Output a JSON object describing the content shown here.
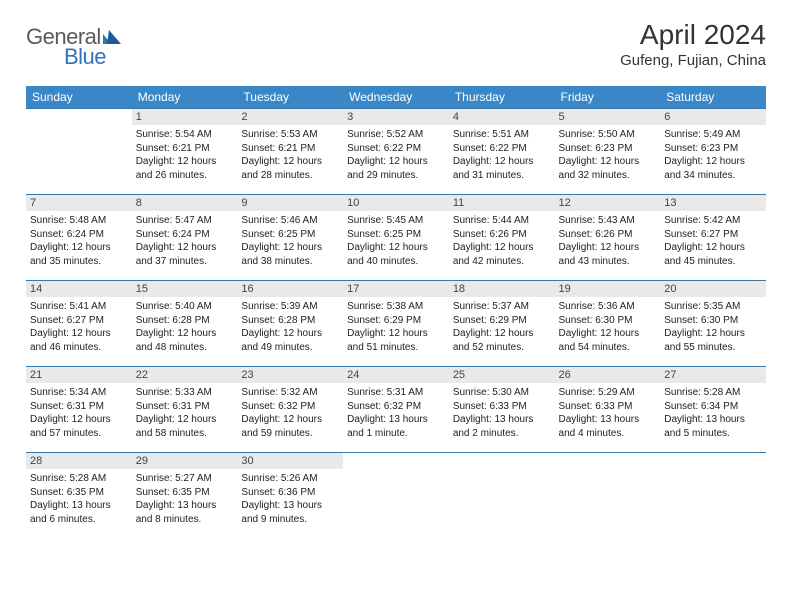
{
  "brand": {
    "part1": "General",
    "part2": "Blue"
  },
  "title": "April 2024",
  "location": "Gufeng, Fujian, China",
  "weekdays": [
    "Sunday",
    "Monday",
    "Tuesday",
    "Wednesday",
    "Thursday",
    "Friday",
    "Saturday"
  ],
  "colors": {
    "header_bg": "#3a87c8",
    "header_text": "#ffffff",
    "daynum_bg": "#e9e9e9",
    "rule": "#3a76a8",
    "brand_gray": "#5a5a5a",
    "brand_blue": "#2f75b5"
  },
  "weeks": [
    [
      {
        "n": "",
        "sr": "",
        "ss": "",
        "dl": ""
      },
      {
        "n": "1",
        "sr": "Sunrise: 5:54 AM",
        "ss": "Sunset: 6:21 PM",
        "dl": "Daylight: 12 hours and 26 minutes."
      },
      {
        "n": "2",
        "sr": "Sunrise: 5:53 AM",
        "ss": "Sunset: 6:21 PM",
        "dl": "Daylight: 12 hours and 28 minutes."
      },
      {
        "n": "3",
        "sr": "Sunrise: 5:52 AM",
        "ss": "Sunset: 6:22 PM",
        "dl": "Daylight: 12 hours and 29 minutes."
      },
      {
        "n": "4",
        "sr": "Sunrise: 5:51 AM",
        "ss": "Sunset: 6:22 PM",
        "dl": "Daylight: 12 hours and 31 minutes."
      },
      {
        "n": "5",
        "sr": "Sunrise: 5:50 AM",
        "ss": "Sunset: 6:23 PM",
        "dl": "Daylight: 12 hours and 32 minutes."
      },
      {
        "n": "6",
        "sr": "Sunrise: 5:49 AM",
        "ss": "Sunset: 6:23 PM",
        "dl": "Daylight: 12 hours and 34 minutes."
      }
    ],
    [
      {
        "n": "7",
        "sr": "Sunrise: 5:48 AM",
        "ss": "Sunset: 6:24 PM",
        "dl": "Daylight: 12 hours and 35 minutes."
      },
      {
        "n": "8",
        "sr": "Sunrise: 5:47 AM",
        "ss": "Sunset: 6:24 PM",
        "dl": "Daylight: 12 hours and 37 minutes."
      },
      {
        "n": "9",
        "sr": "Sunrise: 5:46 AM",
        "ss": "Sunset: 6:25 PM",
        "dl": "Daylight: 12 hours and 38 minutes."
      },
      {
        "n": "10",
        "sr": "Sunrise: 5:45 AM",
        "ss": "Sunset: 6:25 PM",
        "dl": "Daylight: 12 hours and 40 minutes."
      },
      {
        "n": "11",
        "sr": "Sunrise: 5:44 AM",
        "ss": "Sunset: 6:26 PM",
        "dl": "Daylight: 12 hours and 42 minutes."
      },
      {
        "n": "12",
        "sr": "Sunrise: 5:43 AM",
        "ss": "Sunset: 6:26 PM",
        "dl": "Daylight: 12 hours and 43 minutes."
      },
      {
        "n": "13",
        "sr": "Sunrise: 5:42 AM",
        "ss": "Sunset: 6:27 PM",
        "dl": "Daylight: 12 hours and 45 minutes."
      }
    ],
    [
      {
        "n": "14",
        "sr": "Sunrise: 5:41 AM",
        "ss": "Sunset: 6:27 PM",
        "dl": "Daylight: 12 hours and 46 minutes."
      },
      {
        "n": "15",
        "sr": "Sunrise: 5:40 AM",
        "ss": "Sunset: 6:28 PM",
        "dl": "Daylight: 12 hours and 48 minutes."
      },
      {
        "n": "16",
        "sr": "Sunrise: 5:39 AM",
        "ss": "Sunset: 6:28 PM",
        "dl": "Daylight: 12 hours and 49 minutes."
      },
      {
        "n": "17",
        "sr": "Sunrise: 5:38 AM",
        "ss": "Sunset: 6:29 PM",
        "dl": "Daylight: 12 hours and 51 minutes."
      },
      {
        "n": "18",
        "sr": "Sunrise: 5:37 AM",
        "ss": "Sunset: 6:29 PM",
        "dl": "Daylight: 12 hours and 52 minutes."
      },
      {
        "n": "19",
        "sr": "Sunrise: 5:36 AM",
        "ss": "Sunset: 6:30 PM",
        "dl": "Daylight: 12 hours and 54 minutes."
      },
      {
        "n": "20",
        "sr": "Sunrise: 5:35 AM",
        "ss": "Sunset: 6:30 PM",
        "dl": "Daylight: 12 hours and 55 minutes."
      }
    ],
    [
      {
        "n": "21",
        "sr": "Sunrise: 5:34 AM",
        "ss": "Sunset: 6:31 PM",
        "dl": "Daylight: 12 hours and 57 minutes."
      },
      {
        "n": "22",
        "sr": "Sunrise: 5:33 AM",
        "ss": "Sunset: 6:31 PM",
        "dl": "Daylight: 12 hours and 58 minutes."
      },
      {
        "n": "23",
        "sr": "Sunrise: 5:32 AM",
        "ss": "Sunset: 6:32 PM",
        "dl": "Daylight: 12 hours and 59 minutes."
      },
      {
        "n": "24",
        "sr": "Sunrise: 5:31 AM",
        "ss": "Sunset: 6:32 PM",
        "dl": "Daylight: 13 hours and 1 minute."
      },
      {
        "n": "25",
        "sr": "Sunrise: 5:30 AM",
        "ss": "Sunset: 6:33 PM",
        "dl": "Daylight: 13 hours and 2 minutes."
      },
      {
        "n": "26",
        "sr": "Sunrise: 5:29 AM",
        "ss": "Sunset: 6:33 PM",
        "dl": "Daylight: 13 hours and 4 minutes."
      },
      {
        "n": "27",
        "sr": "Sunrise: 5:28 AM",
        "ss": "Sunset: 6:34 PM",
        "dl": "Daylight: 13 hours and 5 minutes."
      }
    ],
    [
      {
        "n": "28",
        "sr": "Sunrise: 5:28 AM",
        "ss": "Sunset: 6:35 PM",
        "dl": "Daylight: 13 hours and 6 minutes."
      },
      {
        "n": "29",
        "sr": "Sunrise: 5:27 AM",
        "ss": "Sunset: 6:35 PM",
        "dl": "Daylight: 13 hours and 8 minutes."
      },
      {
        "n": "30",
        "sr": "Sunrise: 5:26 AM",
        "ss": "Sunset: 6:36 PM",
        "dl": "Daylight: 13 hours and 9 minutes."
      },
      {
        "n": "",
        "sr": "",
        "ss": "",
        "dl": ""
      },
      {
        "n": "",
        "sr": "",
        "ss": "",
        "dl": ""
      },
      {
        "n": "",
        "sr": "",
        "ss": "",
        "dl": ""
      },
      {
        "n": "",
        "sr": "",
        "ss": "",
        "dl": ""
      }
    ]
  ]
}
